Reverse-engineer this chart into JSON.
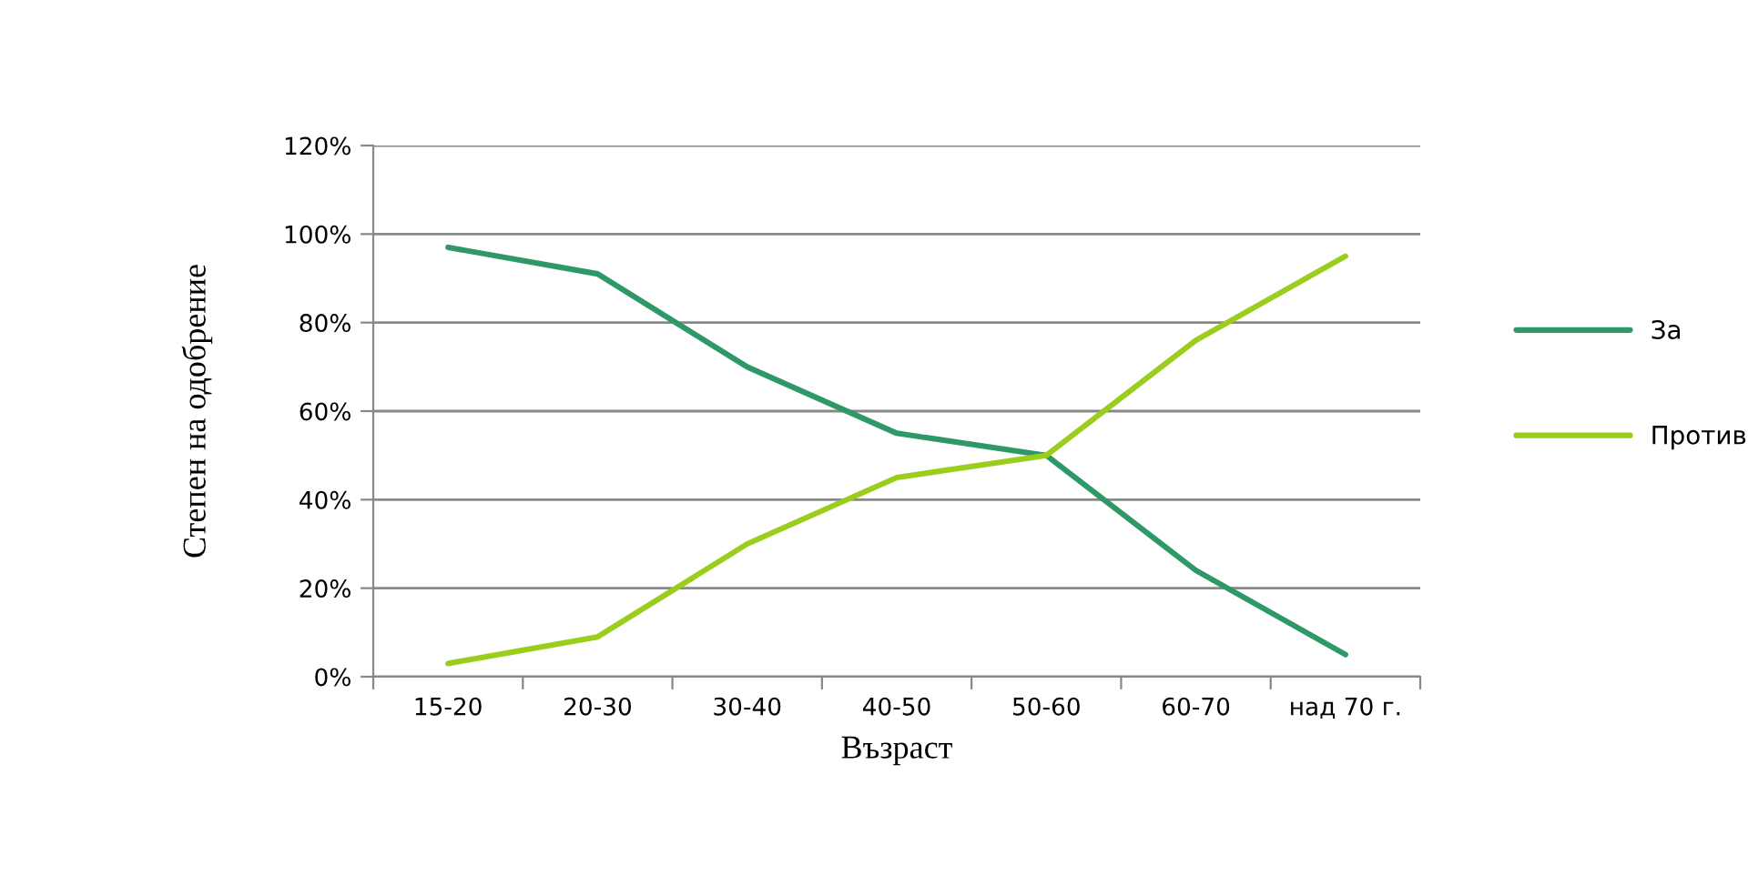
{
  "chart_data": {
    "type": "line",
    "xlabel": "Възраст",
    "ylabel": "Степен на одобрение",
    "categories": [
      "15-20",
      "20-30",
      "30-40",
      "40-50",
      "50-60",
      "60-70",
      "над 70 г."
    ],
    "series": [
      {
        "name": "За",
        "color": "#2e9966",
        "values": [
          97,
          91,
          70,
          55,
          50,
          24,
          5
        ]
      },
      {
        "name": "Против",
        "color": "#9acd1c",
        "values": [
          3,
          9,
          30,
          45,
          50,
          76,
          95
        ]
      }
    ],
    "ylim": [
      0,
      120
    ],
    "yticks": [
      {
        "value": 0,
        "label": "0%"
      },
      {
        "value": 20,
        "label": "20%"
      },
      {
        "value": 40,
        "label": "40%"
      },
      {
        "value": 60,
        "label": "60%"
      },
      {
        "value": 80,
        "label": "80%"
      },
      {
        "value": 100,
        "label": "100%"
      },
      {
        "value": 120,
        "label": "120%"
      }
    ],
    "grid": "y",
    "legend": "right",
    "marker": "none",
    "line_style": "solid"
  }
}
